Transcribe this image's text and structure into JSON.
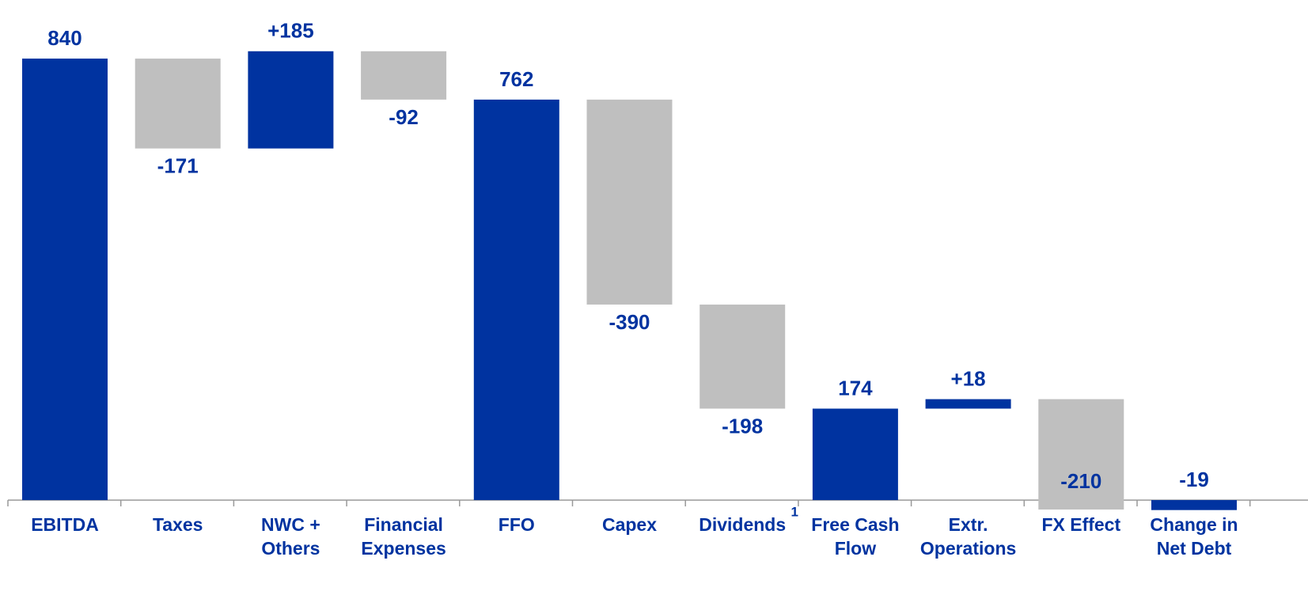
{
  "chart_data": {
    "type": "waterfall",
    "categories": [
      "EBITDA",
      "Taxes",
      "NWC +\nOthers",
      "Financial\nExpenses",
      "FFO",
      "Capex",
      "Dividends",
      "Free Cash\nFlow",
      "Extr.\nOperations",
      "FX Effect",
      "Change in\nNet Debt"
    ],
    "category_superscripts": [
      null,
      null,
      null,
      null,
      null,
      null,
      "1",
      null,
      null,
      null,
      null
    ],
    "values": [
      840,
      -171,
      185,
      -92,
      762,
      -390,
      -198,
      174,
      18,
      -210,
      -19
    ],
    "value_labels": [
      "840",
      "-171",
      "+185",
      "-92",
      "762",
      "-390",
      "-198",
      "174",
      "+18",
      "-210",
      "-19"
    ],
    "total": [
      true,
      false,
      false,
      false,
      true,
      false,
      false,
      true,
      false,
      false,
      true
    ],
    "colors": {
      "total": "#0033a0",
      "increase": "#0033a0",
      "decrease": "#bfbfbf"
    },
    "ylim": [
      -170,
      950
    ]
  }
}
